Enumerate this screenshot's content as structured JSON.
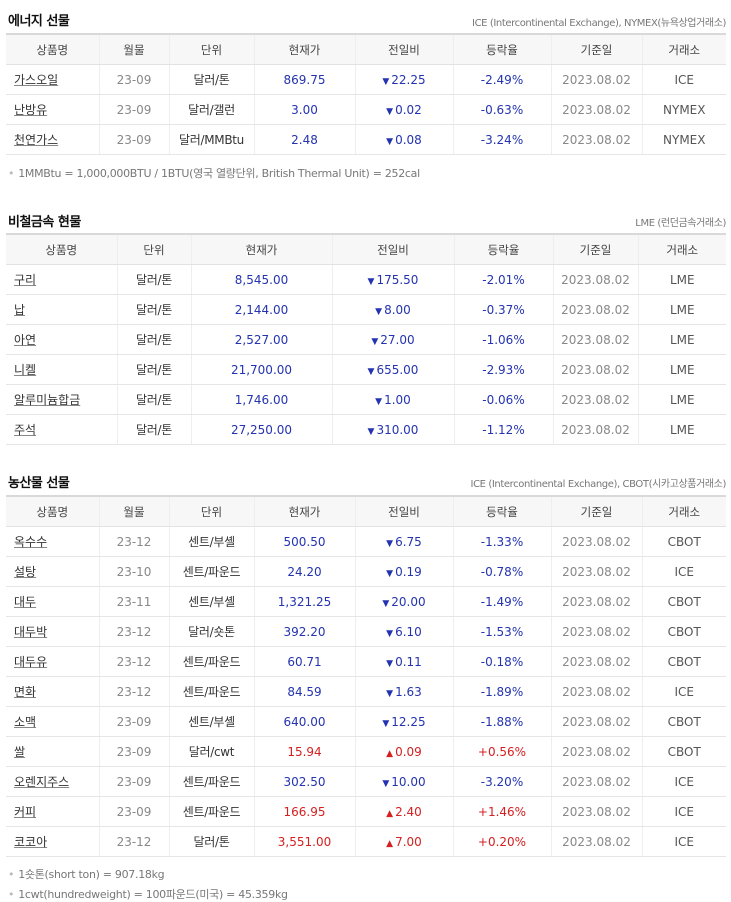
{
  "energy": {
    "title": "에너지 선물",
    "source": "ICE (Intercontinental Exchange), NYMEX(뉴욕상업거래소)",
    "headers": [
      "상품명",
      "월물",
      "단위",
      "현재가",
      "전일비",
      "등락율",
      "기준일",
      "거래소"
    ],
    "rows": [
      {
        "name": "가스오일",
        "month": "23-09",
        "unit": "달러/톤",
        "price": "869.75",
        "change": "22.25",
        "dir": "down",
        "rate": "-2.49%",
        "date": "2023.08.02",
        "exchange": "ICE"
      },
      {
        "name": "난방유",
        "month": "23-09",
        "unit": "달러/갤런",
        "price": "3.00",
        "change": "0.02",
        "dir": "down",
        "rate": "-0.63%",
        "date": "2023.08.02",
        "exchange": "NYMEX"
      },
      {
        "name": "천연가스",
        "month": "23-09",
        "unit": "달러/MMBtu",
        "price": "2.48",
        "change": "0.08",
        "dir": "down",
        "rate": "-3.24%",
        "date": "2023.08.02",
        "exchange": "NYMEX"
      }
    ],
    "notes": [
      "1MMBtu = 1,000,000BTU / 1BTU(영국 열량단위, British Thermal Unit) = 252cal"
    ]
  },
  "metals": {
    "title": "비철금속 현물",
    "source": "LME (런던금속거래소)",
    "headers": [
      "상품명",
      "단위",
      "현재가",
      "전일비",
      "등락율",
      "기준일",
      "거래소"
    ],
    "rows": [
      {
        "name": "구리",
        "unit": "달러/톤",
        "price": "8,545.00",
        "change": "175.50",
        "dir": "down",
        "rate": "-2.01%",
        "date": "2023.08.02",
        "exchange": "LME"
      },
      {
        "name": "납",
        "unit": "달러/톤",
        "price": "2,144.00",
        "change": "8.00",
        "dir": "down",
        "rate": "-0.37%",
        "date": "2023.08.02",
        "exchange": "LME"
      },
      {
        "name": "아연",
        "unit": "달러/톤",
        "price": "2,527.00",
        "change": "27.00",
        "dir": "down",
        "rate": "-1.06%",
        "date": "2023.08.02",
        "exchange": "LME"
      },
      {
        "name": "니켈",
        "unit": "달러/톤",
        "price": "21,700.00",
        "change": "655.00",
        "dir": "down",
        "rate": "-2.93%",
        "date": "2023.08.02",
        "exchange": "LME"
      },
      {
        "name": "알루미늄합금",
        "unit": "달러/톤",
        "price": "1,746.00",
        "change": "1.00",
        "dir": "down",
        "rate": "-0.06%",
        "date": "2023.08.02",
        "exchange": "LME"
      },
      {
        "name": "주석",
        "unit": "달러/톤",
        "price": "27,250.00",
        "change": "310.00",
        "dir": "down",
        "rate": "-1.12%",
        "date": "2023.08.02",
        "exchange": "LME"
      }
    ]
  },
  "agri": {
    "title": "농산물 선물",
    "source": "ICE (Intercontinental Exchange), CBOT(시카고상품거래소)",
    "headers": [
      "상품명",
      "월물",
      "단위",
      "현재가",
      "전일비",
      "등락율",
      "기준일",
      "거래소"
    ],
    "rows": [
      {
        "name": "옥수수",
        "month": "23-12",
        "unit": "센트/부셸",
        "price": "500.50",
        "change": "6.75",
        "dir": "down",
        "rate": "-1.33%",
        "date": "2023.08.02",
        "exchange": "CBOT"
      },
      {
        "name": "설탕",
        "month": "23-10",
        "unit": "센트/파운드",
        "price": "24.20",
        "change": "0.19",
        "dir": "down",
        "rate": "-0.78%",
        "date": "2023.08.02",
        "exchange": "ICE"
      },
      {
        "name": "대두",
        "month": "23-11",
        "unit": "센트/부셸",
        "price": "1,321.25",
        "change": "20.00",
        "dir": "down",
        "rate": "-1.49%",
        "date": "2023.08.02",
        "exchange": "CBOT"
      },
      {
        "name": "대두박",
        "month": "23-12",
        "unit": "달러/숏톤",
        "price": "392.20",
        "change": "6.10",
        "dir": "down",
        "rate": "-1.53%",
        "date": "2023.08.02",
        "exchange": "CBOT"
      },
      {
        "name": "대두유",
        "month": "23-12",
        "unit": "센트/파운드",
        "price": "60.71",
        "change": "0.11",
        "dir": "down",
        "rate": "-0.18%",
        "date": "2023.08.02",
        "exchange": "CBOT"
      },
      {
        "name": "면화",
        "month": "23-12",
        "unit": "센트/파운드",
        "price": "84.59",
        "change": "1.63",
        "dir": "down",
        "rate": "-1.89%",
        "date": "2023.08.02",
        "exchange": "ICE"
      },
      {
        "name": "소맥",
        "month": "23-09",
        "unit": "센트/부셸",
        "price": "640.00",
        "change": "12.25",
        "dir": "down",
        "rate": "-1.88%",
        "date": "2023.08.02",
        "exchange": "CBOT"
      },
      {
        "name": "쌀",
        "month": "23-09",
        "unit": "달러/cwt",
        "price": "15.94",
        "change": "0.09",
        "dir": "up",
        "rate": "+0.56%",
        "date": "2023.08.02",
        "exchange": "CBOT"
      },
      {
        "name": "오렌지주스",
        "month": "23-09",
        "unit": "센트/파운드",
        "price": "302.50",
        "change": "10.00",
        "dir": "down",
        "rate": "-3.20%",
        "date": "2023.08.02",
        "exchange": "ICE"
      },
      {
        "name": "커피",
        "month": "23-09",
        "unit": "센트/파운드",
        "price": "166.95",
        "change": "2.40",
        "dir": "up",
        "rate": "+1.46%",
        "date": "2023.08.02",
        "exchange": "ICE"
      },
      {
        "name": "코코아",
        "month": "23-12",
        "unit": "달러/톤",
        "price": "3,551.00",
        "change": "7.00",
        "dir": "up",
        "rate": "+0.20%",
        "date": "2023.08.02",
        "exchange": "ICE"
      }
    ],
    "notes": [
      "1숏톤(short ton) = 907.18kg",
      "1cwt(hundredweight) = 100파운드(미국) = 45.359kg"
    ]
  },
  "icons": {
    "down": "▼",
    "up": "▲",
    "bullet": "•"
  },
  "colors": {
    "down": "#2433b0",
    "up": "#d42020"
  }
}
